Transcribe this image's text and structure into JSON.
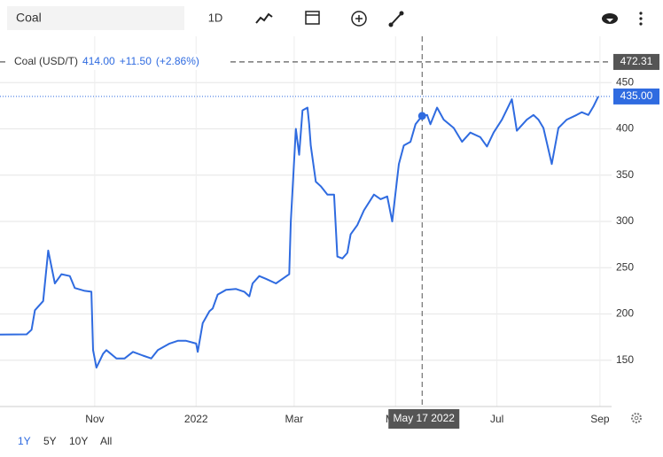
{
  "toolbar": {
    "search": "Coal",
    "interval": "1D"
  },
  "ranges": [
    "1Y",
    "5Y",
    "10Y",
    "All"
  ],
  "chart_data": {
    "type": "line",
    "x": [
      "2021-09-05",
      "2021-09-21",
      "2021-09-24",
      "2021-09-26",
      "2021-10-01",
      "2021-10-04",
      "2021-10-08",
      "2021-10-12",
      "2021-10-17",
      "2021-10-20",
      "2021-10-26",
      "2021-10-30",
      "2021-10-31",
      "2021-11-02",
      "2021-11-06",
      "2021-11-08",
      "2021-11-14",
      "2021-11-19",
      "2021-11-24",
      "2021-11-30",
      "2021-12-05",
      "2021-12-09",
      "2021-12-16",
      "2021-12-21",
      "2021-12-26",
      "2022-01-01",
      "2022-01-02",
      "2022-01-05",
      "2022-01-09",
      "2022-01-11",
      "2022-01-14",
      "2022-01-19",
      "2022-01-25",
      "2022-01-30",
      "2022-02-02",
      "2022-02-04",
      "2022-02-08",
      "2022-02-12",
      "2022-02-18",
      "2022-02-22",
      "2022-02-26",
      "2022-02-27",
      "2022-03-02",
      "2022-03-04",
      "2022-03-06",
      "2022-03-09",
      "2022-03-10",
      "2022-03-11",
      "2022-03-14",
      "2022-03-17",
      "2022-03-21",
      "2022-03-25",
      "2022-03-27",
      "2022-03-30",
      "2022-04-02",
      "2022-04-04",
      "2022-04-08",
      "2022-04-12",
      "2022-04-18",
      "2022-04-22",
      "2022-04-26",
      "2022-04-29",
      "2022-05-03",
      "2022-05-06",
      "2022-05-10",
      "2022-05-13",
      "2022-05-17",
      "2022-05-20",
      "2022-05-22",
      "2022-05-26",
      "2022-05-30",
      "2022-06-05",
      "2022-06-10",
      "2022-06-15",
      "2022-06-21",
      "2022-06-25",
      "2022-06-29",
      "2022-07-04",
      "2022-07-10",
      "2022-07-13",
      "2022-07-19",
      "2022-07-23",
      "2022-07-26",
      "2022-07-29",
      "2022-08-03",
      "2022-08-07",
      "2022-08-12",
      "2022-08-18",
      "2022-08-21",
      "2022-08-25",
      "2022-08-28",
      "2022-08-31"
    ],
    "series": [
      {
        "name": "Coal (USD/T)",
        "color": "#2f6be0",
        "values": [
          177.7,
          178,
          183,
          204,
          214,
          268.5,
          233,
          243,
          241,
          228,
          225,
          224,
          161,
          142,
          157,
          161,
          152,
          152,
          159,
          155,
          152,
          161,
          168,
          171,
          171,
          168,
          159,
          190,
          203,
          206,
          221,
          226,
          227,
          224,
          219,
          233,
          241,
          238,
          233,
          238,
          243,
          300,
          400,
          372,
          420,
          423,
          405,
          382,
          343,
          338,
          329,
          329,
          262,
          260,
          266,
          286,
          296,
          312,
          329,
          324,
          327,
          300,
          362,
          382,
          386,
          405,
          414,
          415,
          405,
          423,
          410,
          401,
          386,
          396,
          391,
          381,
          396,
          410,
          432,
          398,
          410,
          415,
          410,
          401,
          362,
          401,
          410,
          415,
          418,
          415,
          424,
          435
        ]
      }
    ],
    "xlim": [
      "2021-09-05",
      "2022-09-08"
    ],
    "xticks": [
      {
        "value": "2021-11-01",
        "label": "Nov"
      },
      {
        "value": "2022-01-01",
        "label": "2022"
      },
      {
        "value": "2022-03-01",
        "label": "Mar"
      },
      {
        "value": "2022-05-01",
        "label": "May"
      },
      {
        "value": "2022-07-01",
        "label": "Jul"
      },
      {
        "value": "2022-09-01",
        "label": "Sep"
      }
    ],
    "ylim": [
      100,
      500
    ],
    "yticks": [
      150,
      200,
      250,
      300,
      350,
      400,
      450
    ],
    "grid": true,
    "last_value": {
      "value": 435,
      "label": "435.00"
    },
    "cursor_value": 472.31,
    "hover": {
      "x": "2022-05-17",
      "label": "May 17 2022",
      "price": "414.00",
      "change": "+11.50",
      "change_pct": "(+2.86%)"
    }
  }
}
